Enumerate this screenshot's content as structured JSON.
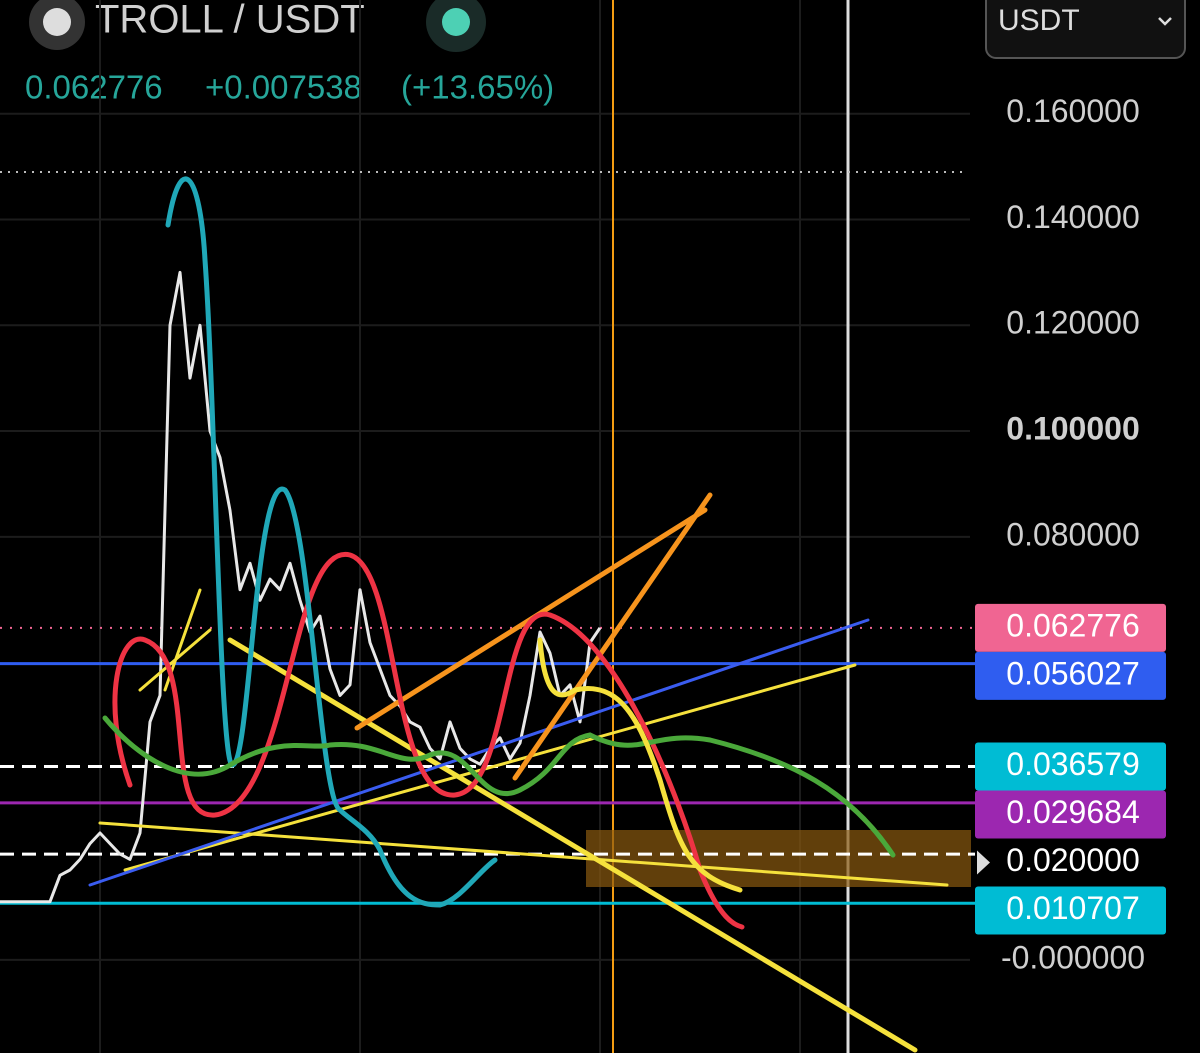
{
  "header": {
    "pair": "TROLL / USDT",
    "price": "0.062776",
    "change": "+0.007538",
    "change_pct": "(+13.65%)",
    "quote_select": "USDT"
  },
  "chart_data": {
    "type": "line",
    "color": "#e8e8e8",
    "values": [
      0.011,
      0.011,
      0.011,
      0.011,
      0.011,
      0.011,
      0.016,
      0.017,
      0.019,
      0.022,
      0.024,
      0.022,
      0.02,
      0.019,
      0.024,
      0.045,
      0.05,
      0.12,
      0.13,
      0.11,
      0.12,
      0.1,
      0.095,
      0.085,
      0.07,
      0.075,
      0.068,
      0.072,
      0.07,
      0.075,
      0.068,
      0.062,
      0.065,
      0.055,
      0.05,
      0.052,
      0.07,
      0.06,
      0.055,
      0.05,
      0.048,
      0.045,
      0.044,
      0.04,
      0.038,
      0.045,
      0.04,
      0.038,
      0.037,
      0.04,
      0.042,
      0.038,
      0.041,
      0.05,
      0.062,
      0.058,
      0.05,
      0.052,
      0.045,
      0.06,
      0.062776
    ],
    "ylim": [
      -0.0176,
      0.1815
    ],
    "yticks": [
      {
        "value": 0.16,
        "label": "0.160000"
      },
      {
        "value": 0.14,
        "label": "0.140000"
      },
      {
        "value": 0.12,
        "label": "0.120000"
      },
      {
        "value": 0.1,
        "label": "0.100000"
      },
      {
        "value": 0.08,
        "label": "0.080000"
      },
      {
        "value": 0,
        "label": "-0.000000"
      }
    ],
    "grid": true,
    "price_levels": [
      {
        "value": 0.062776,
        "color": "#f06592"
      },
      {
        "value": 0.056027,
        "color": "#2f5df0"
      },
      {
        "value": 0.036579,
        "color": "#00bcd4"
      },
      {
        "value": 0.029684,
        "color": "#9c27b0"
      },
      {
        "value": 0.02,
        "label": "0.020000",
        "color": "#ffffff"
      },
      {
        "value": 0.010707,
        "color": "#00bcd4"
      }
    ]
  }
}
